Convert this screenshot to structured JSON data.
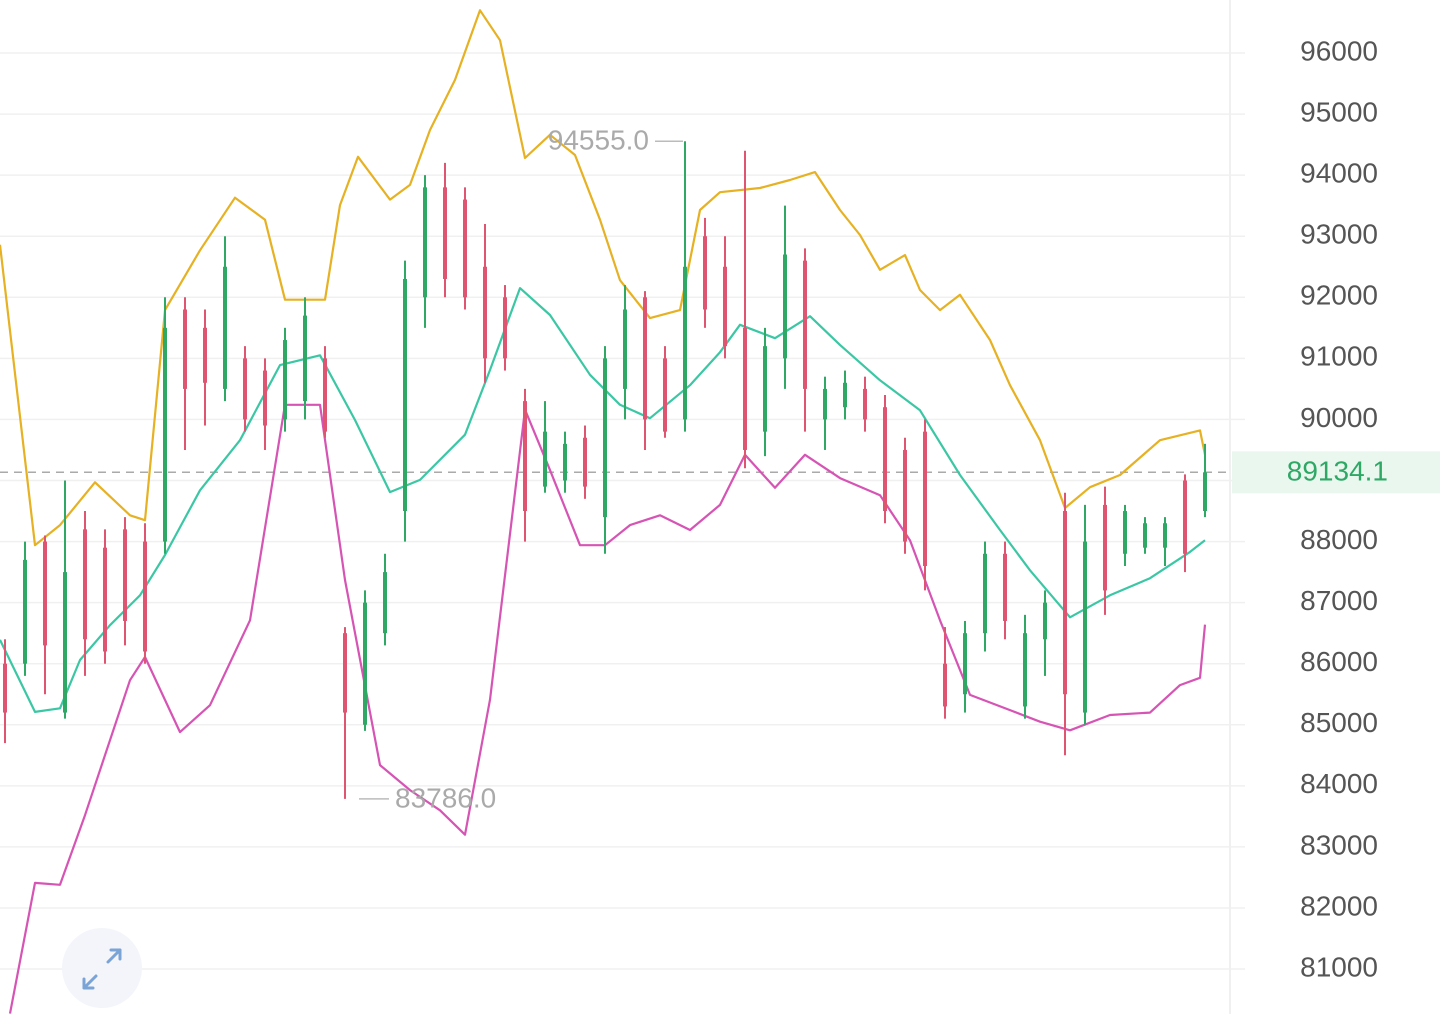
{
  "chart_data": {
    "type": "candlestick",
    "ylim": [
      80264,
      96868
    ],
    "yticks": [
      81000,
      82000,
      83000,
      84000,
      85000,
      86000,
      87000,
      88000,
      89000,
      90000,
      91000,
      92000,
      93000,
      94000,
      95000,
      96000
    ],
    "xlim": [
      -0.25,
      61.25
    ],
    "grid": true,
    "up_color": "#2fa866",
    "down_color": "#df5470",
    "ohlc": {
      "open": [
        86000,
        86000,
        88000,
        85200,
        88200,
        87900,
        88200,
        88000,
        88000,
        91800,
        91500,
        90500,
        91000,
        90800,
        90000,
        90300,
        91000,
        86500,
        85000,
        86500,
        88500,
        92000,
        93800,
        93600,
        92500,
        92000,
        90300,
        88900,
        89000,
        89700,
        88400,
        90500,
        92000,
        91000,
        90000,
        93000,
        92500,
        91500,
        89800,
        91000,
        92600,
        90000,
        90200,
        90500,
        90200,
        89500,
        89800,
        86000,
        85500,
        86500,
        87800,
        85300,
        86400,
        88500,
        85200,
        88600,
        87800,
        87900,
        87900,
        89000,
        88500
      ],
      "high": [
        86400,
        88000,
        88100,
        89000,
        88500,
        88200,
        88400,
        88300,
        92000,
        92000,
        91800,
        93000,
        91200,
        91000,
        91500,
        92000,
        91200,
        86600,
        87200,
        87800,
        92600,
        94000,
        94200,
        93800,
        93200,
        92200,
        90500,
        90300,
        89800,
        89900,
        91200,
        92200,
        92100,
        91200,
        94555,
        93300,
        93000,
        94400,
        91500,
        93500,
        92800,
        90700,
        90800,
        90700,
        90400,
        89700,
        90000,
        86600,
        86700,
        88000,
        88000,
        86800,
        87200,
        88800,
        88600,
        88900,
        88600,
        88400,
        88400,
        89100,
        89600
      ],
      "low": [
        84700,
        85800,
        85500,
        85100,
        85800,
        86000,
        86300,
        86000,
        87800,
        89500,
        89900,
        90300,
        89800,
        89500,
        89800,
        90000,
        89700,
        83786,
        84900,
        86300,
        88000,
        91500,
        92000,
        91800,
        90600,
        90800,
        88000,
        88800,
        88800,
        88700,
        87800,
        90000,
        89500,
        89700,
        89800,
        91500,
        91000,
        89200,
        89400,
        90500,
        89800,
        89500,
        90000,
        89800,
        88300,
        87800,
        87200,
        85100,
        85200,
        86200,
        86400,
        85100,
        85800,
        84500,
        85000,
        86800,
        87600,
        87800,
        87600,
        87500,
        88400
      ],
      "close": [
        85200,
        87700,
        86300,
        87500,
        86400,
        86200,
        86700,
        86200,
        91500,
        90500,
        90600,
        92500,
        90000,
        89900,
        91300,
        91700,
        89800,
        85200,
        87000,
        87500,
        92300,
        93800,
        92300,
        92000,
        91000,
        91000,
        88500,
        89800,
        89600,
        88900,
        91000,
        91800,
        90000,
        89800,
        92500,
        91800,
        91200,
        89500,
        91200,
        92700,
        90500,
        90500,
        90600,
        90000,
        88500,
        88000,
        87600,
        85300,
        86500,
        87800,
        86700,
        86500,
        87000,
        85500,
        88000,
        87200,
        88500,
        88300,
        88300,
        87800,
        89134.1
      ]
    },
    "series": [
      {
        "name": "upper",
        "color": "#e6b122",
        "x": [
          -0.25,
          1.5,
          2.75,
          4.5,
          6.25,
          7,
          8,
          9.75,
          11.5,
          13,
          14,
          16,
          16.75,
          17.65,
          19.25,
          20.25,
          21.25,
          22.5,
          23.75,
          24.75,
          26,
          27.25,
          28.5,
          29.75,
          30.75,
          32.25,
          33.75,
          34.75,
          35.75,
          37.75,
          39.25,
          40.5,
          41.75,
          42.75,
          43.75,
          45,
          45.75,
          46.75,
          47.75,
          49.25,
          50.25,
          51.75,
          53,
          54.25,
          55.75,
          57.75,
          59.75,
          60
        ],
        "values": [
          92860,
          87940,
          88270,
          88970,
          88430,
          88350,
          91790,
          92770,
          93630,
          93270,
          91960,
          91960,
          93510,
          94300,
          93600,
          93840,
          94740,
          95560,
          96700,
          96210,
          94280,
          94660,
          94330,
          93270,
          92280,
          91660,
          91790,
          93430,
          93720,
          93790,
          93920,
          94050,
          93430,
          93020,
          92450,
          92690,
          92120,
          91790,
          92040,
          91300,
          90560,
          89660,
          88550,
          88890,
          89090,
          89660,
          89820,
          89420
        ]
      },
      {
        "name": "middle",
        "color": "#3cc7a4",
        "x": [
          -0.25,
          1.5,
          2.75,
          3.75,
          5.25,
          6.75,
          8,
          9.75,
          11.75,
          13.75,
          15.75,
          17.5,
          19.25,
          20.75,
          23,
          24.25,
          25.75,
          27.25,
          29.25,
          30.75,
          32.25,
          34.25,
          35.75,
          36.75,
          38.5,
          40.25,
          41.75,
          43.75,
          45.75,
          47.75,
          49.75,
          51.25,
          53.25,
          55.25,
          57.25,
          59.25,
          60
        ],
        "values": [
          86390,
          85210,
          85270,
          86060,
          86630,
          87120,
          87780,
          88840,
          89660,
          90890,
          91050,
          89990,
          88810,
          89010,
          89750,
          90810,
          92150,
          91710,
          90730,
          90240,
          90020,
          90560,
          91100,
          91550,
          91330,
          91690,
          91220,
          90640,
          90150,
          89090,
          88190,
          87530,
          86760,
          87120,
          87400,
          87830,
          88020
        ]
      },
      {
        "name": "lower",
        "color": "#d654b4",
        "x": [
          0.25,
          1.5,
          2.75,
          4,
          6.25,
          7,
          8.75,
          10.25,
          12.25,
          14,
          15.75,
          17,
          18.75,
          20.25,
          21.75,
          23,
          24.25,
          26,
          27.25,
          28.75,
          30,
          31.25,
          32.75,
          34.25,
          35.75,
          37,
          38.5,
          40,
          41.75,
          43.75,
          45.25,
          46.75,
          48.25,
          50.25,
          51.75,
          53.25,
          55.25,
          57.25,
          58.75,
          59.75,
          60
        ],
        "values": [
          80270,
          82410,
          82380,
          83520,
          85730,
          86110,
          84880,
          85320,
          86710,
          90240,
          90240,
          87370,
          84340,
          83930,
          83600,
          83200,
          85410,
          90160,
          89170,
          87940,
          87940,
          88270,
          88430,
          88190,
          88600,
          89420,
          88880,
          89420,
          89040,
          88760,
          88020,
          86710,
          85490,
          85240,
          85050,
          84910,
          85160,
          85200,
          85650,
          85770,
          86640
        ]
      }
    ],
    "high_marker": {
      "value": 94555,
      "label": "94555.0"
    },
    "low_marker": {
      "value": 83786,
      "label": "83786.0"
    },
    "last_price": {
      "value": 89134.1,
      "label": "89134.1"
    }
  }
}
